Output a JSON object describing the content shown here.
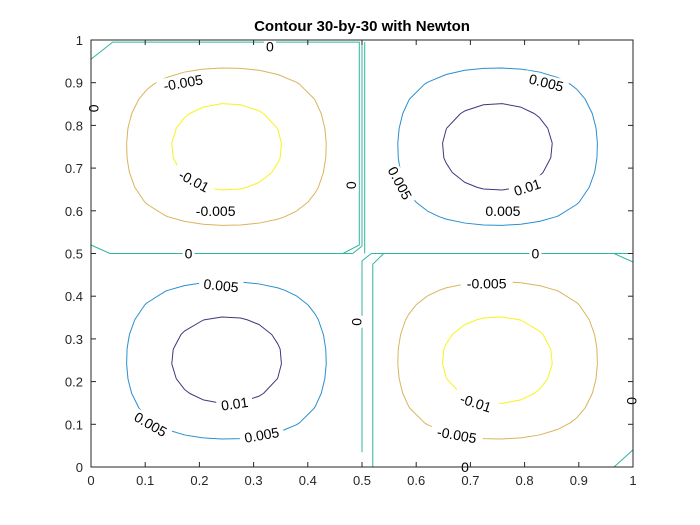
{
  "chart_data": {
    "type": "contour",
    "title": "Contour 30-by-30 with Newton",
    "function": "z = f(x, y) sampled on a 30-by-30 grid; saddle-like pattern",
    "xlim": [
      0,
      1
    ],
    "ylim": [
      0,
      1
    ],
    "x_ticks": [
      0,
      0.1,
      0.2,
      0.3,
      0.4,
      0.5,
      0.6,
      0.7,
      0.8,
      0.9,
      1
    ],
    "y_ticks": [
      0,
      0.1,
      0.2,
      0.3,
      0.4,
      0.5,
      0.6,
      0.7,
      0.8,
      0.9,
      1
    ],
    "x_tick_labels": [
      "0",
      "0.1",
      "0.2",
      "0.3",
      "0.4",
      "0.5",
      "0.6",
      "0.7",
      "0.8",
      "0.9",
      "1"
    ],
    "y_tick_labels": [
      "0",
      "0.1",
      "0.2",
      "0.3",
      "0.4",
      "0.5",
      "0.6",
      "0.7",
      "0.8",
      "0.9",
      "1"
    ],
    "levels": [
      -0.01,
      -0.005,
      0,
      0.005,
      0.01
    ],
    "level_colors": {
      "-0.01": "#46337E",
      "-0.005": "#2A8ECF",
      "0": "#2EB6A0",
      "0.005": "#D9B45C",
      "0.01": "#F7F31C"
    },
    "contour_labels": [
      {
        "text": "0",
        "level": 0,
        "x": 0.33,
        "y": 0.985,
        "angle": 0
      },
      {
        "text": "-0.005",
        "level": -0.005,
        "x": 0.17,
        "y": 0.9,
        "angle": -10
      },
      {
        "text": "0",
        "level": 0,
        "x": 0.005,
        "y": 0.84,
        "angle": -90
      },
      {
        "text": "-0.01",
        "level": -0.01,
        "x": 0.19,
        "y": 0.67,
        "angle": 28
      },
      {
        "text": "-0.005",
        "level": -0.005,
        "x": 0.23,
        "y": 0.6,
        "angle": 0
      },
      {
        "text": "0",
        "level": 0,
        "x": 0.18,
        "y": 0.5,
        "angle": 0
      },
      {
        "text": "0.005",
        "level": 0.005,
        "x": 0.84,
        "y": 0.9,
        "angle": 14
      },
      {
        "text": "0.005",
        "level": 0.005,
        "x": 0.57,
        "y": 0.665,
        "angle": 62
      },
      {
        "text": "0.01",
        "level": 0.01,
        "x": 0.805,
        "y": 0.655,
        "angle": -18
      },
      {
        "text": "0.005",
        "level": 0.005,
        "x": 0.76,
        "y": 0.6,
        "angle": 0
      },
      {
        "text": "0",
        "level": 0,
        "x": 0.48,
        "y": 0.66,
        "angle": -90
      },
      {
        "text": "0",
        "level": 0,
        "x": 0.82,
        "y": 0.5,
        "angle": 0
      },
      {
        "text": "0.005",
        "level": 0.005,
        "x": 0.24,
        "y": 0.425,
        "angle": 6
      },
      {
        "text": "-0.005",
        "level": -0.005,
        "x": 0.73,
        "y": 0.43,
        "angle": 0
      },
      {
        "text": "0",
        "level": 0,
        "x": 0.49,
        "y": 0.34,
        "angle": -90
      },
      {
        "text": "0.01",
        "level": 0.01,
        "x": 0.265,
        "y": 0.148,
        "angle": -8
      },
      {
        "text": "-0.01",
        "level": -0.01,
        "x": 0.71,
        "y": 0.15,
        "angle": 18
      },
      {
        "text": "0.005",
        "level": 0.005,
        "x": 0.11,
        "y": 0.1,
        "angle": 30
      },
      {
        "text": "0.005",
        "level": 0.005,
        "x": 0.315,
        "y": 0.075,
        "angle": -10
      },
      {
        "text": "-0.005",
        "level": -0.005,
        "x": 0.675,
        "y": 0.075,
        "angle": 10
      },
      {
        "text": "0",
        "level": 0,
        "x": 0.997,
        "y": 0.155,
        "angle": -90
      },
      {
        "text": "0",
        "level": 0,
        "x": 0.69,
        "y": 0.0,
        "angle": 0
      }
    ]
  }
}
